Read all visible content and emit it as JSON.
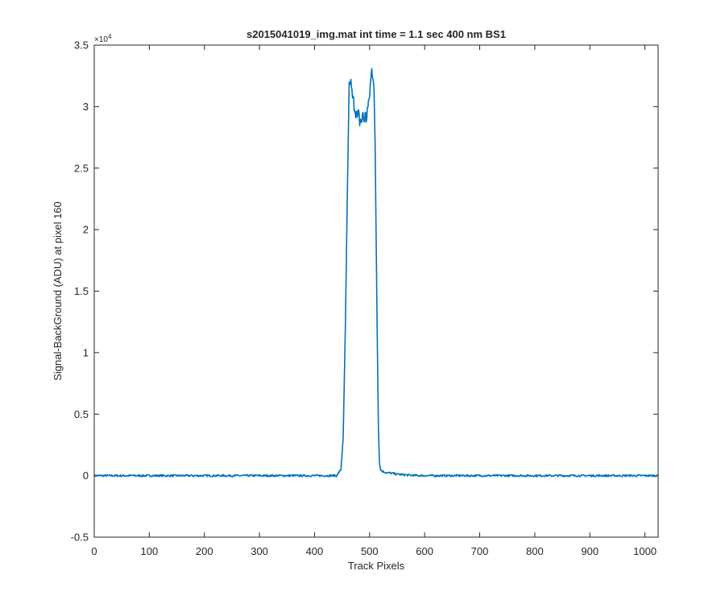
{
  "chart_data": {
    "type": "line",
    "title": "s2015041019_img.mat int time = 1.1 sec  400 nm BS1",
    "xlabel": "Track Pixels",
    "ylabel": "Signal-BackGround (ADU) at pixel 160",
    "y_exponent_base": "×10",
    "y_exponent_power": "4",
    "xlim": [
      0,
      1024
    ],
    "ylim": [
      -0.5,
      3.5
    ],
    "xticks": [
      0,
      100,
      200,
      300,
      400,
      500,
      600,
      700,
      800,
      900,
      1000
    ],
    "yticks": [
      -0.5,
      0,
      0.5,
      1,
      1.5,
      2,
      2.5,
      3,
      3.5
    ],
    "ytick_labels": [
      "-0.5",
      "0",
      "0.5",
      "1",
      "1.5",
      "2",
      "2.5",
      "3",
      "3.5"
    ],
    "grid": false,
    "line_color": "#0072bd",
    "series": [
      {
        "x": [
          0,
          440,
          448,
          452,
          456,
          460,
          463,
          466,
          468,
          470,
          472,
          474,
          476,
          478,
          480,
          482,
          484,
          486,
          488,
          490,
          492,
          494,
          496,
          498,
          500,
          502,
          504,
          506,
          508,
          510,
          512,
          514,
          516,
          518,
          520,
          522,
          526,
          530,
          540,
          550,
          560,
          570,
          580,
          600,
          1024
        ],
        "y": [
          0.0,
          0.0,
          0.05,
          0.3,
          1.2,
          2.4,
          3.2,
          3.18,
          3.1,
          3.05,
          3.02,
          2.98,
          2.95,
          2.9,
          2.93,
          2.88,
          2.9,
          2.87,
          2.95,
          2.88,
          2.93,
          2.9,
          2.98,
          3.0,
          3.1,
          3.2,
          3.3,
          3.26,
          3.15,
          2.7,
          1.9,
          1.1,
          0.4,
          0.1,
          0.05,
          0.04,
          0.03,
          0.025,
          0.02,
          0.012,
          0.008,
          0.004,
          0.002,
          0.0,
          0.0
        ]
      }
    ]
  }
}
